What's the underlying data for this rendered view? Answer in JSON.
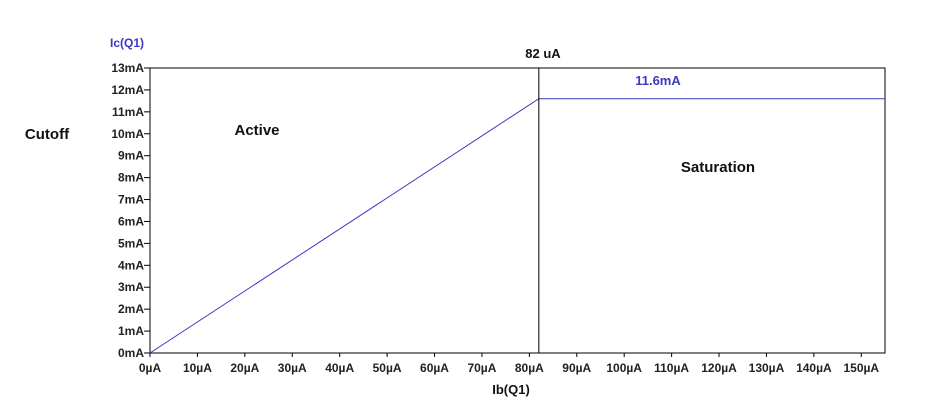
{
  "chart_data": {
    "type": "line",
    "ylabel": "Ic(Q1)",
    "xlabel": "Ib(Q1)",
    "xlim": [
      0,
      155
    ],
    "ylim": [
      0,
      13
    ],
    "x_ticks": [
      "0µA",
      "10µA",
      "20µA",
      "30µA",
      "40µA",
      "50µA",
      "60µA",
      "70µA",
      "80µA",
      "90µA",
      "100µA",
      "110µA",
      "120µA",
      "130µA",
      "140µA",
      "150µA"
    ],
    "y_ticks": [
      "0mA",
      "1mA",
      "2mA",
      "3mA",
      "4mA",
      "5mA",
      "6mA",
      "7mA",
      "8mA",
      "9mA",
      "10mA",
      "11mA",
      "12mA",
      "13mA"
    ],
    "series": [
      {
        "x": [
          0,
          82,
          155
        ],
        "y": [
          0,
          11.6,
          11.6
        ],
        "color": "#3a3ac0"
      }
    ],
    "vline_x": 82,
    "annotations": {
      "vline_label": "82 uA",
      "sat_value": "11.6mA",
      "cutoff": "Cutoff",
      "active": "Active",
      "saturation": "Saturation"
    },
    "grid": false,
    "colors": {
      "series": "#3a3ac0",
      "axis": "#000000",
      "ylabel": "#3a3ac0"
    }
  }
}
